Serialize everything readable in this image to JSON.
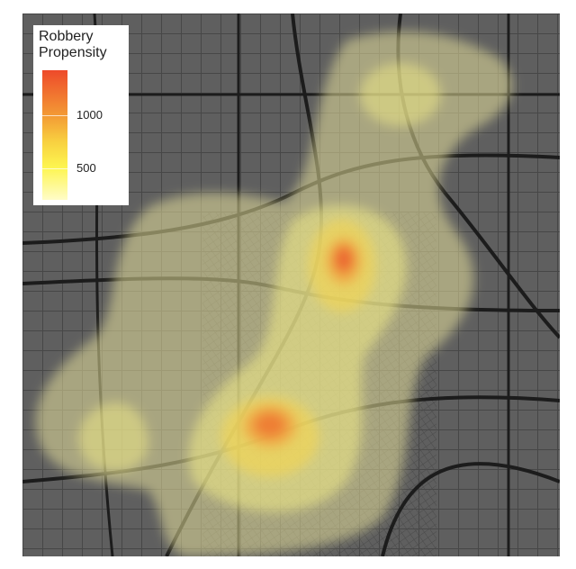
{
  "legend": {
    "title_line1": "Robbery",
    "title_line2": "Propensity",
    "ticks": [
      {
        "label": "1000",
        "value": 1000
      },
      {
        "label": "500",
        "value": 500
      }
    ],
    "colors": [
      "#fffcc8",
      "#fdf550",
      "#f8d040",
      "#f39a35",
      "#ee4a2a"
    ]
  },
  "map": {
    "basemap": "dark gray street map",
    "background": "#5e5e5e",
    "road_color": "#1e1e1e",
    "overlay": "robbery density contours"
  }
}
